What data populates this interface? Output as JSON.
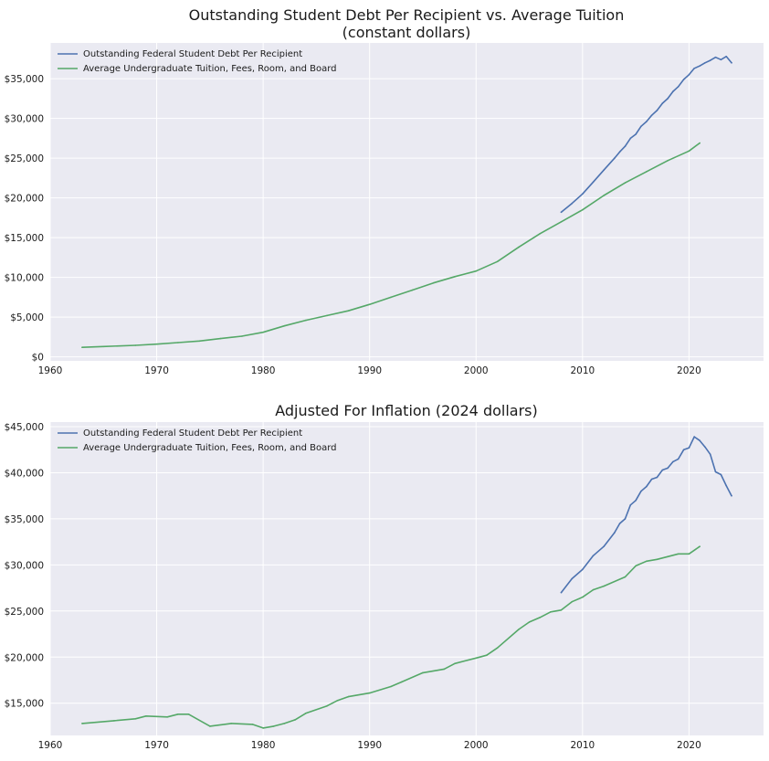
{
  "colors": {
    "panel_bg": "#eaeaf2",
    "grid": "#ffffff",
    "debt_line": "#4c72b0",
    "tuition_line": "#55a868"
  },
  "chart_data": [
    {
      "type": "line",
      "title": "Outstanding Student Debt Per Recipient vs. Average Tuition",
      "subtitle": "(constant dollars)",
      "xlabel": "",
      "ylabel": "",
      "xlim": [
        1960,
        2027
      ],
      "ylim": [
        -500,
        39500
      ],
      "x_ticks": [
        1960,
        1970,
        1980,
        1990,
        2000,
        2010,
        2020
      ],
      "y_ticks": [
        0,
        5000,
        10000,
        15000,
        20000,
        25000,
        30000,
        35000
      ],
      "y_tick_labels": [
        "$0",
        "$5,000",
        "$10,000",
        "$15,000",
        "$20,000",
        "$25,000",
        "$30,000",
        "$35,000"
      ],
      "grid": true,
      "legend": "top-left",
      "series": [
        {
          "name": "Outstanding Federal Student Debt Per Recipient",
          "x": [
            2008,
            2009,
            2010,
            2011,
            2012,
            2013,
            2013.5,
            2014,
            2014.5,
            2015,
            2015.5,
            2016,
            2016.5,
            2017,
            2017.5,
            2018,
            2018.5,
            2019,
            2019.5,
            2020,
            2020.5,
            2021,
            2021.5,
            2022,
            2022.5,
            2023,
            2023.5,
            2024
          ],
          "values": [
            18200,
            19300,
            20500,
            22000,
            23500,
            25000,
            25800,
            26500,
            27500,
            28000,
            29000,
            29600,
            30400,
            31000,
            31900,
            32500,
            33400,
            34000,
            34900,
            35500,
            36300,
            36600,
            37000,
            37300,
            37700,
            37400,
            37800,
            37000
          ]
        },
        {
          "name": "Average Undergraduate Tuition, Fees, Room, and Board",
          "x": [
            1963,
            1965,
            1968,
            1970,
            1972,
            1974,
            1976,
            1978,
            1980,
            1982,
            1984,
            1986,
            1988,
            1990,
            1992,
            1994,
            1996,
            1998,
            2000,
            2002,
            2004,
            2006,
            2008,
            2010,
            2012,
            2014,
            2016,
            2018,
            2020,
            2021
          ],
          "values": [
            1200,
            1300,
            1450,
            1600,
            1800,
            2000,
            2300,
            2600,
            3100,
            3900,
            4600,
            5200,
            5800,
            6600,
            7500,
            8400,
            9300,
            10100,
            10800,
            12000,
            13800,
            15500,
            17000,
            18500,
            20300,
            21900,
            23300,
            24700,
            25900,
            26900
          ]
        }
      ]
    },
    {
      "type": "line",
      "title": "Adjusted For Inflation (2024 dollars)",
      "xlabel": "",
      "ylabel": "",
      "xlim": [
        1960,
        2027
      ],
      "ylim": [
        11500,
        45500
      ],
      "x_ticks": [
        1960,
        1970,
        1980,
        1990,
        2000,
        2010,
        2020
      ],
      "y_ticks": [
        15000,
        20000,
        25000,
        30000,
        35000,
        40000,
        45000
      ],
      "y_tick_labels": [
        "$15,000",
        "$20,000",
        "$25,000",
        "$30,000",
        "$35,000",
        "$40,000",
        "$45,000"
      ],
      "grid": true,
      "legend": "top-left",
      "series": [
        {
          "name": "Outstanding Federal Student Debt Per Recipient",
          "x": [
            2008,
            2009,
            2010,
            2011,
            2012,
            2013,
            2013.5,
            2014,
            2014.5,
            2015,
            2015.5,
            2016,
            2016.5,
            2017,
            2017.5,
            2018,
            2018.5,
            2019,
            2019.5,
            2020,
            2020.5,
            2021,
            2021.5,
            2022,
            2022.5,
            2023,
            2023.5,
            2024
          ],
          "values": [
            27000,
            28500,
            29500,
            31000,
            32000,
            33500,
            34500,
            35000,
            36500,
            37000,
            38000,
            38500,
            39300,
            39500,
            40300,
            40500,
            41200,
            41500,
            42500,
            42700,
            43900,
            43500,
            42800,
            42000,
            40100,
            39800,
            38600,
            37500
          ]
        },
        {
          "name": "Average Undergraduate Tuition, Fees, Room, and Board",
          "x": [
            1963,
            1966,
            1968,
            1969,
            1971,
            1972,
            1973,
            1975,
            1977,
            1979,
            1980,
            1981,
            1982,
            1983,
            1984,
            1986,
            1987,
            1988,
            1990,
            1992,
            1993,
            1995,
            1997,
            1998,
            2000,
            2001,
            2002,
            2004,
            2005,
            2006,
            2007,
            2008,
            2009,
            2010,
            2011,
            2012,
            2014,
            2015,
            2016,
            2017,
            2018,
            2019,
            2020,
            2021
          ],
          "values": [
            12800,
            13100,
            13300,
            13600,
            13500,
            13800,
            13800,
            12500,
            12800,
            12700,
            12300,
            12500,
            12800,
            13200,
            13900,
            14700,
            15300,
            15700,
            16100,
            16800,
            17300,
            18300,
            18700,
            19300,
            19900,
            20200,
            21000,
            23000,
            23800,
            24300,
            24900,
            25100,
            26000,
            26500,
            27300,
            27700,
            28700,
            29900,
            30400,
            30600,
            30900,
            31200,
            31200,
            32000
          ]
        }
      ]
    }
  ]
}
